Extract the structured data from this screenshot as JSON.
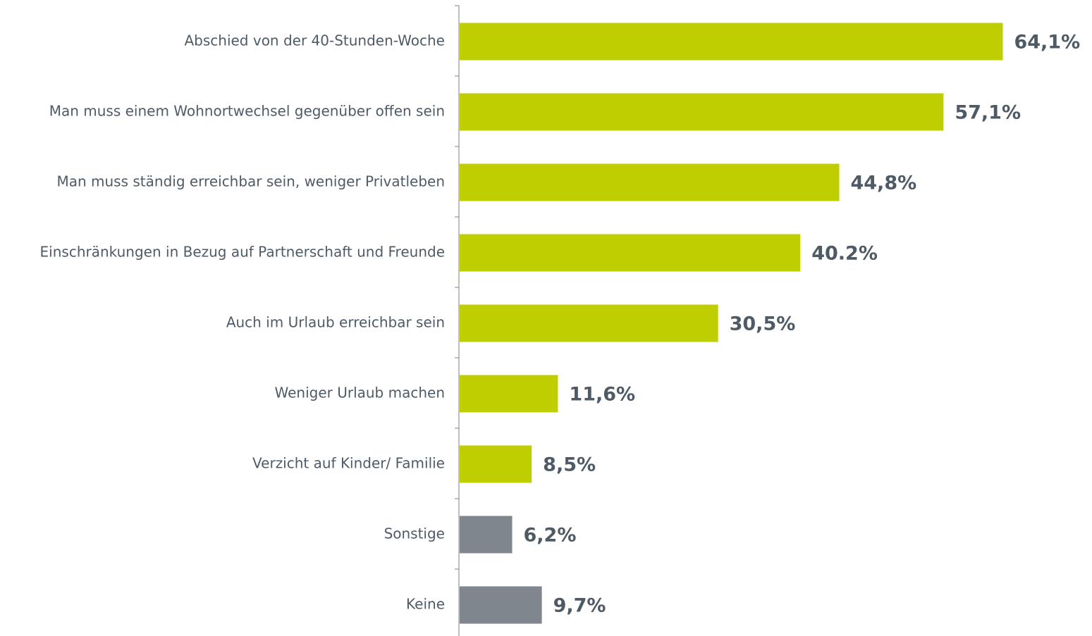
{
  "chart_data": {
    "type": "bar",
    "orientation": "horizontal",
    "categories": [
      "Abschied von der 40-Stunden-Woche",
      "Man muss einem Wohnortwechsel gegenüber offen sein",
      "Man muss ständig erreichbar sein, weniger Privatleben",
      "Einschränkungen in Bezug auf Partnerschaft und Freunde",
      "Auch im Urlaub erreichbar sein",
      "Weniger Urlaub machen",
      "Verzicht auf Kinder/ Familie",
      "Sonstige",
      "Keine"
    ],
    "values": [
      64.1,
      57.1,
      44.8,
      40.2,
      30.5,
      11.6,
      8.5,
      6.2,
      9.7
    ],
    "value_labels": [
      "64,1%",
      "57,1%",
      "44,8%",
      "40.2%",
      "30,5%",
      "11,6%",
      "8,5%",
      "6,2%",
      "9,7%"
    ],
    "colors": [
      "#bfce00",
      "#bfce00",
      "#bfce00",
      "#bfce00",
      "#bfce00",
      "#bfce00",
      "#bfce00",
      "#80868e",
      "#80868e"
    ]
  }
}
